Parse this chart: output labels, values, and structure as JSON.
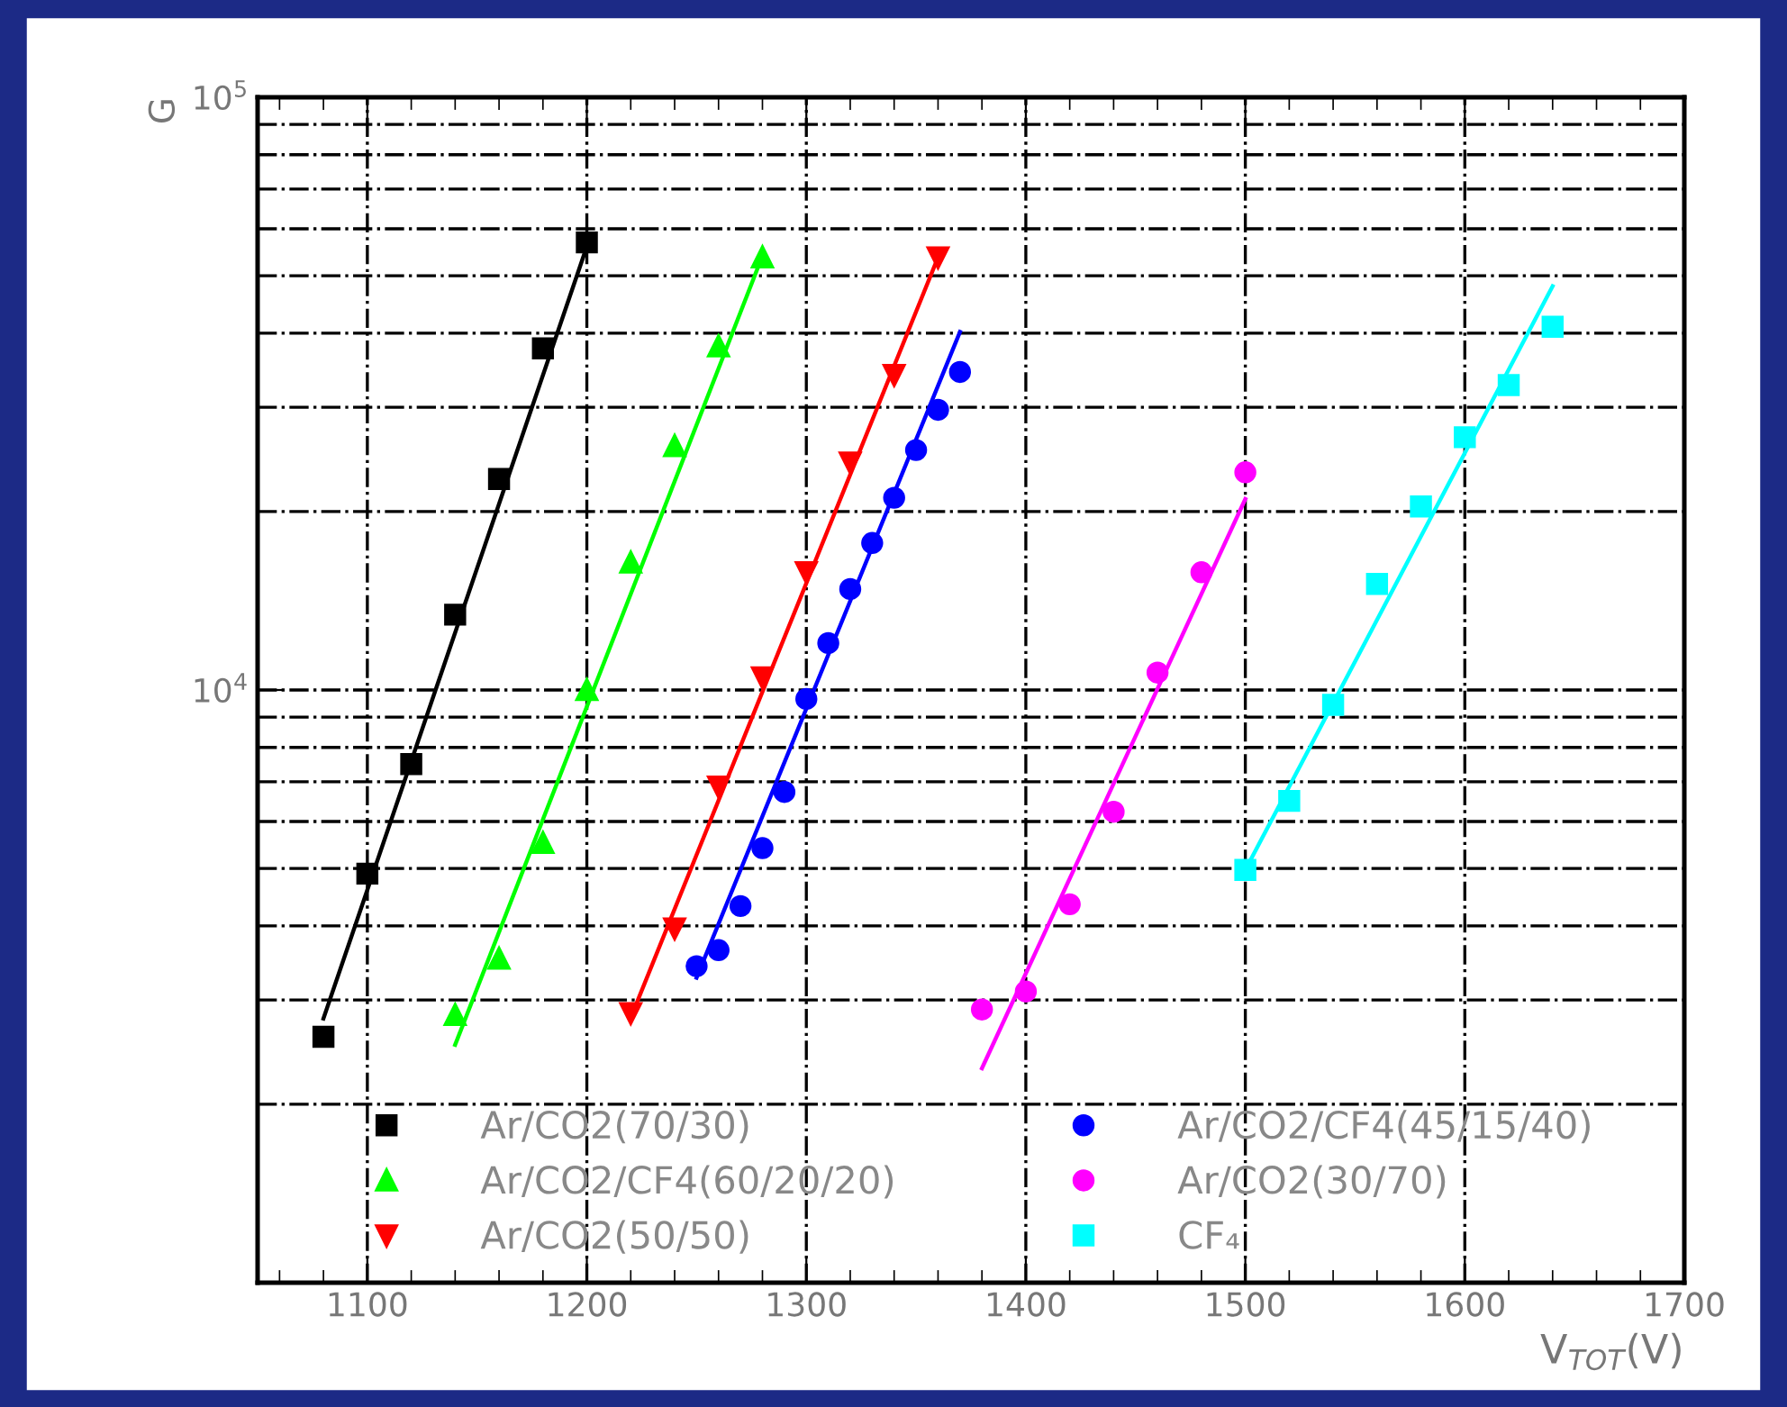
{
  "chart_data": {
    "type": "scatter",
    "xlabel": "V$_{TOT}$(V)",
    "ylabel": "G",
    "log": "y",
    "grid": true,
    "legend": "bottom",
    "xlim": [
      1050,
      1700
    ],
    "ylim": [
      1000,
      100000
    ],
    "xticks": [
      {
        "value": 1060,
        "label": null
      },
      {
        "value": 1080,
        "label": null
      },
      1100,
      {
        "value": 1120,
        "label": null
      },
      {
        "value": 1140,
        "label": null
      },
      {
        "value": 1160,
        "label": null
      },
      {
        "value": 1180,
        "label": null
      },
      1200,
      {
        "value": 1220,
        "label": null
      },
      {
        "value": 1240,
        "label": null
      },
      {
        "value": 1260,
        "label": null
      },
      {
        "value": 1280,
        "label": null
      },
      1300,
      {
        "value": 1320,
        "label": null
      },
      {
        "value": 1340,
        "label": null
      },
      {
        "value": 1360,
        "label": null
      },
      {
        "value": 1380,
        "label": null
      },
      1400,
      {
        "value": 1420,
        "label": null
      },
      {
        "value": 1440,
        "label": null
      },
      {
        "value": 1460,
        "label": null
      },
      {
        "value": 1480,
        "label": null
      },
      1500,
      {
        "value": 1520,
        "label": null
      },
      {
        "value": 1540,
        "label": null
      },
      {
        "value": 1560,
        "label": null
      },
      {
        "value": 1580,
        "label": null
      },
      1600,
      {
        "value": 1620,
        "label": null
      },
      {
        "value": 1640,
        "label": null
      },
      {
        "value": 1660,
        "label": null
      },
      {
        "value": 1680,
        "label": null
      },
      1700
    ],
    "yticks": [
      {
        "value": 2000,
        "label": null
      },
      {
        "value": 3000,
        "label": null
      },
      {
        "value": 4000,
        "label": null
      },
      {
        "value": 5000,
        "label": null
      },
      {
        "value": 6000,
        "label": null
      },
      {
        "value": 7000,
        "label": null
      },
      {
        "value": 8000,
        "label": null
      },
      {
        "value": 9000,
        "label": null
      },
      {
        "value": 10000,
        "label": "10$^{4}$"
      },
      {
        "value": 20000,
        "label": null
      },
      {
        "value": 30000,
        "label": null
      },
      {
        "value": 40000,
        "label": null
      },
      {
        "value": 50000,
        "label": null
      },
      {
        "value": 60000,
        "label": null
      },
      {
        "value": 70000,
        "label": null
      },
      {
        "value": 80000,
        "label": null
      },
      {
        "value": 90000,
        "label": null
      },
      {
        "value": 100000,
        "label": "10$^{5}$"
      }
    ],
    "series": [
      {
        "name": "Ar/CO2(70/30)",
        "color": "#000000",
        "marker": "square",
        "x": [
          1080,
          1100,
          1120,
          1140,
          1160,
          1180,
          1200
        ],
        "values": [
          2600,
          4900,
          7500,
          13400,
          22700,
          37700,
          56900
        ]
      },
      {
        "name": "Ar/CO2/CF4(60/20/20)",
        "color": "#00ff00",
        "marker": "triangle",
        "x": [
          1140,
          1160,
          1180,
          1200,
          1220,
          1240,
          1260,
          1280
        ],
        "values": [
          2830,
          3520,
          5520,
          10000,
          16400,
          25800,
          38000,
          53700
        ]
      },
      {
        "name": "Ar/CO2(50/50)",
        "color": "#ff0000",
        "marker": "triangle-down",
        "x": [
          1220,
          1240,
          1260,
          1280,
          1300,
          1320,
          1340,
          1360
        ],
        "values": [
          2850,
          3960,
          6870,
          10500,
          15800,
          24200,
          34000,
          53700
        ]
      },
      {
        "name": "Ar/CO2/CF4(45/15/40)",
        "color": "#0000ff",
        "marker": "circle",
        "x": [
          1250,
          1260,
          1270,
          1280,
          1290,
          1300,
          1310,
          1320,
          1330,
          1340,
          1350,
          1360,
          1370
        ],
        "values": [
          3420,
          3640,
          4320,
          5410,
          6730,
          9660,
          12000,
          14800,
          17700,
          21100,
          25400,
          29700,
          34400
        ]
      },
      {
        "name": "Ar/CO2(30/70)",
        "color": "#ff00ff",
        "marker": "circle",
        "x": [
          1380,
          1400,
          1420,
          1440,
          1460,
          1480,
          1500
        ],
        "values": [
          2890,
          3100,
          4350,
          6230,
          10700,
          15800,
          23300
        ]
      },
      {
        "name": "CF₄",
        "color": "#00ffff",
        "marker": "square",
        "x": [
          1500,
          1520,
          1540,
          1560,
          1580,
          1600,
          1620,
          1640
        ],
        "values": [
          4970,
          6500,
          9440,
          15100,
          20400,
          26700,
          32700,
          41000
        ]
      },
      {
        "type": "line",
        "color": "#000000",
        "marker": "none",
        "x": [
          1080,
          1200
        ],
        "values": [
          2790,
          56000
        ]
      },
      {
        "type": "line",
        "color": "#00ff00",
        "marker": "none",
        "x": [
          1140,
          1280
        ],
        "values": [
          2520,
          54000
        ]
      },
      {
        "type": "line",
        "color": "#ff0000",
        "marker": "none",
        "x": [
          1220,
          1360
        ],
        "values": [
          2800,
          53700
        ]
      },
      {
        "type": "line",
        "color": "#0000ff",
        "marker": "none",
        "x": [
          1250,
          1370
        ],
        "values": [
          3270,
          40200
        ]
      },
      {
        "type": "line",
        "color": "#ff00ff",
        "marker": "none",
        "x": [
          1380,
          1500
        ],
        "values": [
          2300,
          21000
        ]
      },
      {
        "type": "line",
        "color": "#00ffff",
        "marker": "none",
        "x": [
          1500,
          1640
        ],
        "values": [
          4970,
          48000
        ]
      }
    ]
  }
}
